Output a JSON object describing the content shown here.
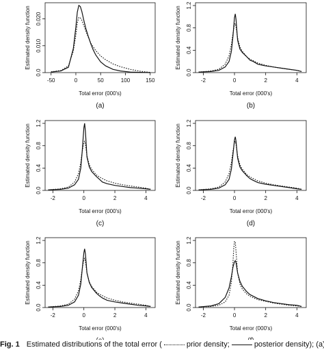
{
  "chart_data": [
    {
      "type": "line",
      "panel_label": "(a)",
      "xlabel": "Total error (000's)",
      "ylabel": "Estimated density function",
      "xlim": [
        -62,
        160
      ],
      "ylim": [
        0,
        0.026
      ],
      "xticks": [
        -50,
        0,
        50,
        100,
        150
      ],
      "yticks": [
        0.0,
        0.01,
        0.02
      ],
      "ytick_labels": [
        "0.0",
        "0.010",
        "0.020"
      ],
      "series": [
        {
          "style": "dotted",
          "x": [
            -50,
            -30,
            -15,
            -5,
            0,
            3,
            6,
            9,
            12,
            16,
            20,
            25,
            30,
            40,
            50,
            60,
            75,
            90,
            110,
            130,
            150
          ],
          "y": [
            0.0003,
            0.0008,
            0.0025,
            0.008,
            0.014,
            0.0185,
            0.0205,
            0.0204,
            0.0195,
            0.0175,
            0.0155,
            0.0132,
            0.011,
            0.0082,
            0.0062,
            0.0048,
            0.0032,
            0.0022,
            0.0012,
            0.0005,
            0.0001
          ]
        },
        {
          "style": "solid",
          "x": [
            -50,
            -30,
            -15,
            -5,
            0,
            3,
            6,
            9,
            12,
            16,
            20,
            25,
            30,
            35,
            40,
            50,
            60,
            75,
            90,
            110,
            130,
            150
          ],
          "y": [
            0.0002,
            0.0006,
            0.002,
            0.009,
            0.017,
            0.0225,
            0.025,
            0.0246,
            0.0228,
            0.0195,
            0.0165,
            0.0135,
            0.0108,
            0.0085,
            0.0066,
            0.004,
            0.0025,
            0.0012,
            0.0006,
            0.0002,
            0.0001,
            0.0
          ]
        }
      ]
    },
    {
      "type": "line",
      "panel_label": "(b)",
      "xlabel": "Total error (000's)",
      "ylabel": "Estimated density function",
      "xlim": [
        -2.5,
        4.6
      ],
      "ylim": [
        0,
        1.25
      ],
      "xticks": [
        -2,
        0,
        2,
        4
      ],
      "yticks": [
        0.0,
        0.4,
        0.8,
        1.2
      ],
      "ytick_labels": [
        "0.0",
        "0.4",
        "0.8",
        "1.2"
      ],
      "series": [
        {
          "style": "dotted",
          "x": [
            -2.3,
            -1.5,
            -1.0,
            -0.6,
            -0.35,
            -0.2,
            -0.1,
            0.0,
            0.05,
            0.1,
            0.2,
            0.35,
            0.5,
            0.8,
            1.0,
            1.5,
            2.0,
            2.5,
            3.0,
            3.5,
            4.0,
            4.3
          ],
          "y": [
            0.01,
            0.03,
            0.06,
            0.15,
            0.3,
            0.5,
            0.7,
            0.86,
            0.88,
            0.82,
            0.62,
            0.46,
            0.38,
            0.28,
            0.24,
            0.17,
            0.13,
            0.1,
            0.08,
            0.06,
            0.04,
            0.02
          ]
        },
        {
          "style": "solid",
          "x": [
            -2.3,
            -1.5,
            -1.0,
            -0.6,
            -0.35,
            -0.2,
            -0.1,
            0.0,
            0.05,
            0.1,
            0.2,
            0.35,
            0.5,
            0.8,
            1.0,
            1.2,
            1.5,
            2.0,
            2.5,
            3.0,
            3.5,
            4.0,
            4.3
          ],
          "y": [
            0.01,
            0.02,
            0.04,
            0.1,
            0.2,
            0.38,
            0.65,
            0.98,
            1.05,
            0.95,
            0.58,
            0.42,
            0.36,
            0.28,
            0.22,
            0.2,
            0.15,
            0.12,
            0.1,
            0.08,
            0.06,
            0.04,
            0.02
          ]
        }
      ]
    },
    {
      "type": "line",
      "panel_label": "(c)",
      "xlabel": "Total error (000's)",
      "ylabel": "Estimated density function",
      "xlim": [
        -2.5,
        4.6
      ],
      "ylim": [
        0,
        1.25
      ],
      "xticks": [
        -2,
        0,
        2,
        4
      ],
      "yticks": [
        0.0,
        0.4,
        0.8,
        1.2
      ],
      "ytick_labels": [
        "0.0",
        "0.4",
        "0.8",
        "1.2"
      ],
      "series": [
        {
          "style": "dotted",
          "x": [
            -2.3,
            -1.5,
            -1.0,
            -0.6,
            -0.35,
            -0.2,
            -0.1,
            0.0,
            0.05,
            0.1,
            0.2,
            0.35,
            0.5,
            0.8,
            1.0,
            1.5,
            2.0,
            2.5,
            3.0,
            3.5,
            4.0,
            4.3
          ],
          "y": [
            0.01,
            0.03,
            0.06,
            0.15,
            0.3,
            0.5,
            0.7,
            0.86,
            0.88,
            0.82,
            0.62,
            0.46,
            0.38,
            0.28,
            0.24,
            0.17,
            0.13,
            0.1,
            0.08,
            0.06,
            0.04,
            0.02
          ]
        },
        {
          "style": "solid",
          "x": [
            -2.3,
            -1.5,
            -1.0,
            -0.6,
            -0.35,
            -0.2,
            -0.1,
            0.0,
            0.05,
            0.1,
            0.2,
            0.35,
            0.5,
            0.8,
            1.0,
            1.2,
            1.5,
            2.0,
            2.5,
            3.0,
            3.5,
            4.0,
            4.3
          ],
          "y": [
            0.01,
            0.02,
            0.04,
            0.1,
            0.2,
            0.4,
            0.72,
            1.12,
            1.2,
            1.05,
            0.6,
            0.42,
            0.34,
            0.25,
            0.2,
            0.15,
            0.12,
            0.09,
            0.07,
            0.05,
            0.04,
            0.03,
            0.02
          ]
        }
      ]
    },
    {
      "type": "line",
      "panel_label": "(d)",
      "xlabel": "Total error (000's)",
      "ylabel": "Estimated density function",
      "xlim": [
        -2.5,
        4.6
      ],
      "ylim": [
        0,
        1.25
      ],
      "xticks": [
        -2,
        0,
        2,
        4
      ],
      "yticks": [
        0.0,
        0.4,
        0.8,
        1.2
      ],
      "ytick_labels": [
        "0.0",
        "0.4",
        "0.8",
        "1.2"
      ],
      "series": [
        {
          "style": "dotted",
          "x": [
            -2.3,
            -1.5,
            -1.0,
            -0.6,
            -0.35,
            -0.2,
            -0.1,
            0.0,
            0.05,
            0.1,
            0.2,
            0.35,
            0.5,
            0.8,
            1.0,
            1.5,
            2.0,
            2.5,
            3.0,
            3.5,
            4.0,
            4.3
          ],
          "y": [
            0.01,
            0.03,
            0.06,
            0.15,
            0.3,
            0.5,
            0.7,
            0.86,
            0.88,
            0.82,
            0.62,
            0.46,
            0.38,
            0.28,
            0.24,
            0.17,
            0.13,
            0.1,
            0.08,
            0.06,
            0.04,
            0.02
          ]
        },
        {
          "style": "solid",
          "x": [
            -2.3,
            -1.5,
            -1.0,
            -0.6,
            -0.35,
            -0.2,
            -0.1,
            0.0,
            0.05,
            0.1,
            0.2,
            0.35,
            0.5,
            0.8,
            1.0,
            1.2,
            1.5,
            2.0,
            2.5,
            3.0,
            3.5,
            4.0,
            4.3
          ],
          "y": [
            0.01,
            0.02,
            0.04,
            0.1,
            0.2,
            0.38,
            0.64,
            0.9,
            0.96,
            0.88,
            0.58,
            0.42,
            0.35,
            0.26,
            0.21,
            0.18,
            0.14,
            0.11,
            0.09,
            0.07,
            0.05,
            0.03,
            0.02
          ]
        }
      ]
    },
    {
      "type": "line",
      "panel_label": "(e)",
      "xlabel": "Total error (000's)",
      "ylabel": "Estimated density function",
      "xlim": [
        -2.5,
        4.6
      ],
      "ylim": [
        0,
        1.25
      ],
      "xticks": [
        -2,
        0,
        2,
        4
      ],
      "yticks": [
        0.0,
        0.4,
        0.8,
        1.2
      ],
      "ytick_labels": [
        "0.0",
        "0.4",
        "0.8",
        "1.2"
      ],
      "series": [
        {
          "style": "dotted",
          "x": [
            -2.3,
            -1.5,
            -1.0,
            -0.6,
            -0.35,
            -0.2,
            -0.1,
            0.0,
            0.05,
            0.1,
            0.2,
            0.35,
            0.5,
            0.8,
            1.0,
            1.5,
            2.0,
            2.5,
            3.0,
            3.5,
            4.0,
            4.3
          ],
          "y": [
            0.01,
            0.03,
            0.06,
            0.15,
            0.3,
            0.5,
            0.7,
            0.86,
            0.88,
            0.82,
            0.62,
            0.46,
            0.38,
            0.28,
            0.24,
            0.17,
            0.13,
            0.1,
            0.08,
            0.06,
            0.04,
            0.02
          ]
        },
        {
          "style": "solid",
          "x": [
            -2.3,
            -1.5,
            -1.0,
            -0.6,
            -0.35,
            -0.2,
            -0.1,
            0.0,
            0.05,
            0.1,
            0.2,
            0.35,
            0.5,
            0.8,
            1.0,
            1.2,
            1.5,
            2.0,
            2.5,
            3.0,
            3.5,
            4.0,
            4.3
          ],
          "y": [
            0.01,
            0.02,
            0.04,
            0.1,
            0.22,
            0.42,
            0.7,
            0.98,
            1.05,
            0.96,
            0.62,
            0.45,
            0.36,
            0.26,
            0.21,
            0.17,
            0.13,
            0.1,
            0.08,
            0.06,
            0.04,
            0.03,
            0.02
          ]
        }
      ]
    },
    {
      "type": "line",
      "panel_label": "(f)",
      "xlabel": "Total error (000's)",
      "ylabel": "Estimated density function",
      "xlim": [
        -2.5,
        4.6
      ],
      "ylim": [
        0,
        1.25
      ],
      "xticks": [
        -2,
        0,
        2,
        4
      ],
      "yticks": [
        0.0,
        0.4,
        0.8,
        1.2
      ],
      "ytick_labels": [
        "0.0",
        "0.4",
        "0.8",
        "1.2"
      ],
      "series": [
        {
          "style": "dotted",
          "x": [
            -2.3,
            -1.5,
            -1.0,
            -0.6,
            -0.35,
            -0.2,
            -0.1,
            -0.05,
            0.0,
            0.05,
            0.1,
            0.2,
            0.35,
            0.5,
            0.8,
            1.0,
            1.5,
            2.0,
            2.5,
            3.0,
            3.5,
            4.0,
            4.3
          ],
          "y": [
            0.01,
            0.02,
            0.04,
            0.1,
            0.22,
            0.45,
            0.8,
            1.05,
            1.18,
            1.18,
            1.0,
            0.62,
            0.42,
            0.33,
            0.24,
            0.2,
            0.14,
            0.11,
            0.08,
            0.06,
            0.04,
            0.03,
            0.02
          ]
        },
        {
          "style": "solid",
          "x": [
            -2.3,
            -1.5,
            -1.0,
            -0.6,
            -0.35,
            -0.2,
            -0.1,
            0.0,
            0.05,
            0.1,
            0.2,
            0.35,
            0.5,
            0.8,
            1.0,
            1.5,
            2.0,
            2.5,
            3.0,
            3.5,
            4.0,
            4.3
          ],
          "y": [
            0.01,
            0.03,
            0.07,
            0.18,
            0.35,
            0.55,
            0.72,
            0.82,
            0.84,
            0.8,
            0.62,
            0.47,
            0.38,
            0.28,
            0.23,
            0.16,
            0.12,
            0.09,
            0.07,
            0.05,
            0.04,
            0.02
          ]
        }
      ]
    }
  ],
  "caption": {
    "label": "Fig. 1",
    "text_before": "Estimated distributions of the total error (",
    "prior_label": "prior density;",
    "posterior_label": "posterior density); (a) orga-"
  }
}
